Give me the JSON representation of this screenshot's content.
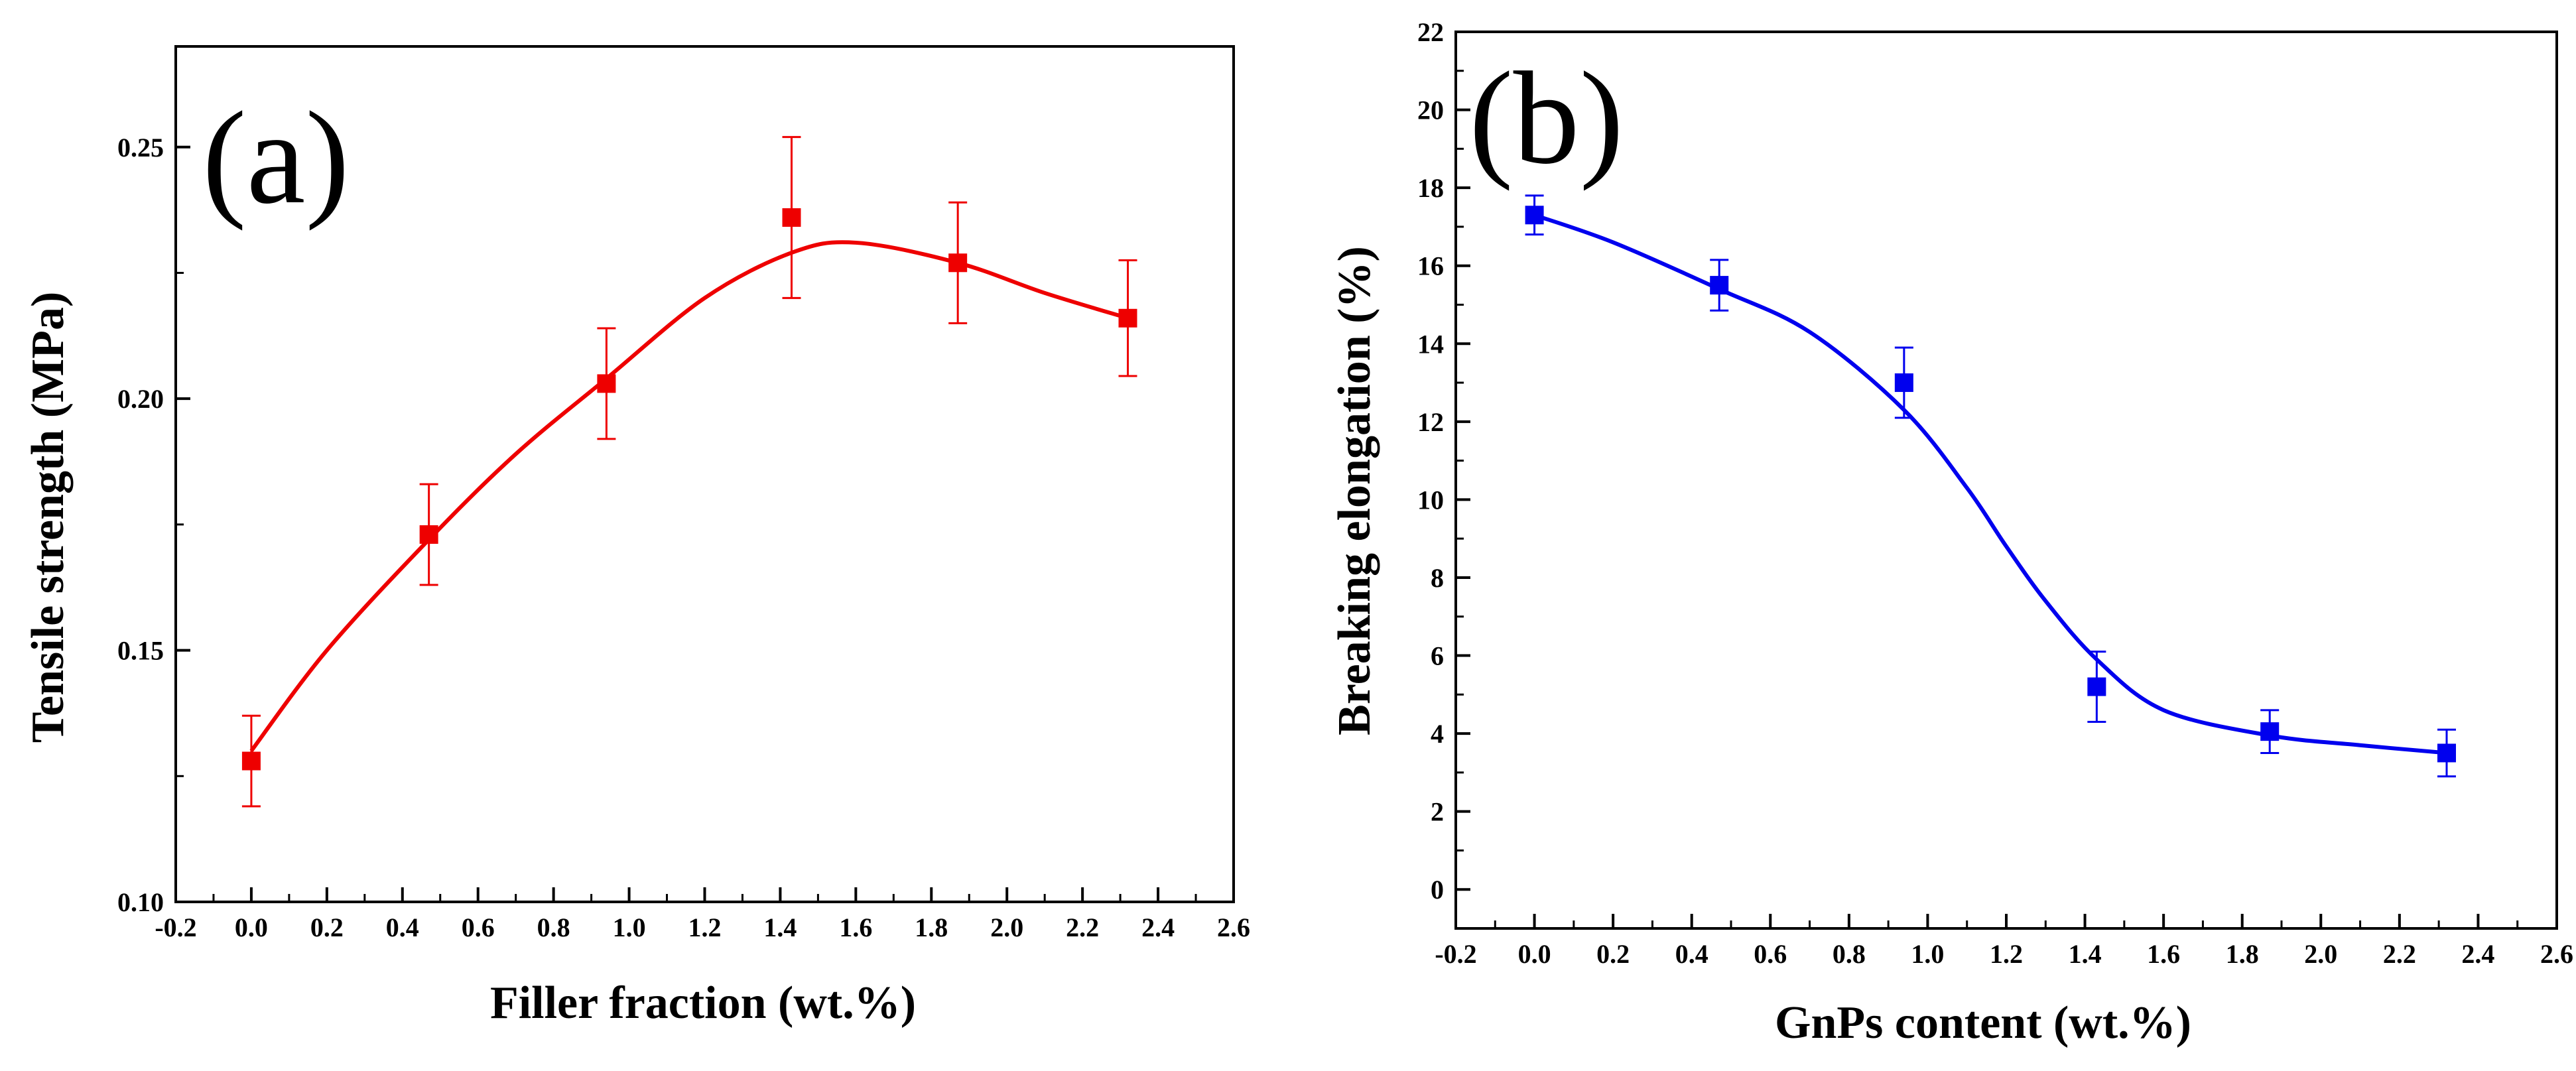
{
  "chart_data": [
    {
      "panel": "(a)",
      "type": "scatter",
      "xlabel": "Filler fraction (wt.%)",
      "ylabel": "Tensile strength (MPa)",
      "xlim": [
        -0.2,
        2.6
      ],
      "ylim": [
        0.1,
        0.27
      ],
      "xticks": [
        "-0.2",
        "0.0",
        "0.2",
        "0.4",
        "0.6",
        "0.8",
        "1.0",
        "1.2",
        "1.4",
        "1.6",
        "1.8",
        "2.0",
        "2.2",
        "2.4",
        "2.6"
      ],
      "yticks": [
        "0.10",
        "0.15",
        "0.20",
        "0.25"
      ],
      "color": "#ee0000",
      "grid": false,
      "series": [
        {
          "x": [
            0.0,
            0.47,
            0.94,
            1.43,
            1.87,
            2.32
          ],
          "y": [
            0.128,
            0.173,
            0.203,
            0.236,
            0.227,
            0.216
          ],
          "err": [
            0.009,
            0.01,
            0.011,
            0.016,
            0.012,
            0.0115
          ]
        }
      ],
      "fit": {
        "x": [
          0.0,
          0.2,
          0.47,
          0.7,
          0.94,
          1.2,
          1.43,
          1.6,
          1.87,
          2.1,
          2.32
        ],
        "y": [
          0.13,
          0.15,
          0.172,
          0.189,
          0.204,
          0.22,
          0.229,
          0.231,
          0.227,
          0.221,
          0.216
        ]
      }
    },
    {
      "panel": "(b)",
      "type": "scatter",
      "xlabel": "GnPs content (wt.%)",
      "ylabel": "Breaking elongation (%)",
      "xlim": [
        -0.2,
        2.6
      ],
      "ylim": [
        -1,
        22
      ],
      "xticks": [
        "-0.2",
        "0.0",
        "0.2",
        "0.4",
        "0.6",
        "0.8",
        "1.0",
        "1.2",
        "1.4",
        "1.6",
        "1.8",
        "2.0",
        "2.2",
        "2.4",
        "2.6"
      ],
      "yticks": [
        "0",
        "2",
        "4",
        "6",
        "8",
        "10",
        "12",
        "14",
        "16",
        "18",
        "20",
        "22"
      ],
      "color": "#0000ee",
      "grid": false,
      "series": [
        {
          "x": [
            0.0,
            0.47,
            0.94,
            1.43,
            1.87,
            2.32
          ],
          "y": [
            17.3,
            15.5,
            13.0,
            5.2,
            4.05,
            3.5
          ],
          "err": [
            0.5,
            0.65,
            0.9,
            0.9,
            0.55,
            0.6
          ]
        }
      ],
      "fit": {
        "x": [
          0.0,
          0.2,
          0.47,
          0.7,
          0.94,
          1.1,
          1.2,
          1.3,
          1.43,
          1.6,
          1.87,
          2.1,
          2.32
        ],
        "y": [
          17.3,
          16.6,
          15.4,
          14.3,
          12.3,
          10.3,
          8.8,
          7.4,
          5.9,
          4.6,
          3.95,
          3.7,
          3.5
        ]
      }
    }
  ]
}
